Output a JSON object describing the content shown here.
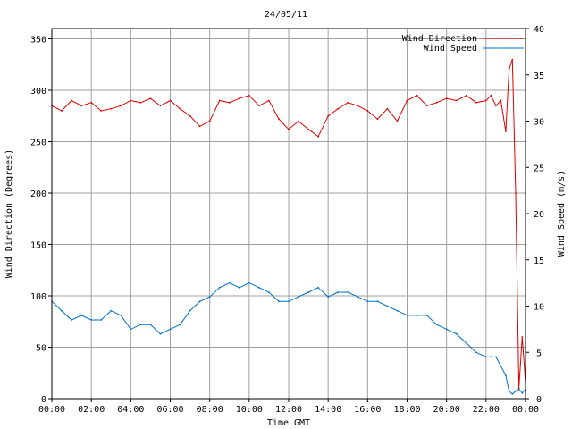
{
  "chart_data": {
    "type": "line",
    "title": "24/05/11",
    "xlabel": "Time GMT",
    "ylabel_left": "Wind Direction (Degrees)",
    "ylabel_right": "Wind Speed (m/s)",
    "x_ticks": [
      "00:00",
      "02:00",
      "04:00",
      "06:00",
      "08:00",
      "10:00",
      "12:00",
      "14:00",
      "16:00",
      "18:00",
      "20:00",
      "22:00",
      "00:00"
    ],
    "y_left_ticks": [
      "0",
      "50",
      "100",
      "150",
      "200",
      "250",
      "300",
      "350"
    ],
    "y_right_ticks": [
      "0",
      "5",
      "10",
      "15",
      "20",
      "25",
      "30",
      "35",
      "40"
    ],
    "ylim_left": [
      0,
      360
    ],
    "ylim_right": [
      0,
      40
    ],
    "grid": true,
    "legend_position": "top-right",
    "series": [
      {
        "name": "Wind Direction",
        "axis": "left",
        "color": "#dd0000",
        "x": [
          "00:00",
          "00:30",
          "01:00",
          "01:30",
          "02:00",
          "02:30",
          "03:00",
          "03:30",
          "04:00",
          "04:30",
          "05:00",
          "05:30",
          "06:00",
          "06:30",
          "07:00",
          "07:30",
          "08:00",
          "08:30",
          "09:00",
          "09:30",
          "10:00",
          "10:30",
          "11:00",
          "11:30",
          "12:00",
          "12:30",
          "13:00",
          "13:30",
          "14:00",
          "14:30",
          "15:00",
          "15:30",
          "16:00",
          "16:30",
          "17:00",
          "17:30",
          "18:00",
          "18:30",
          "19:00",
          "19:30",
          "20:00",
          "20:30",
          "21:00",
          "21:30",
          "22:00",
          "22:15",
          "22:30",
          "22:45",
          "23:00",
          "23:10",
          "23:20",
          "23:30",
          "23:40",
          "23:50",
          "24:00"
        ],
        "values": [
          285,
          280,
          290,
          285,
          288,
          280,
          282,
          285,
          290,
          288,
          292,
          285,
          290,
          282,
          275,
          265,
          270,
          290,
          288,
          292,
          295,
          285,
          290,
          272,
          262,
          270,
          262,
          255,
          275,
          282,
          288,
          285,
          280,
          272,
          282,
          270,
          290,
          295,
          285,
          288,
          292,
          290,
          295,
          288,
          290,
          295,
          285,
          290,
          260,
          320,
          330,
          200,
          10,
          60,
          15
        ]
      },
      {
        "name": "Wind Speed",
        "axis": "right",
        "color": "#0070c8",
        "x": [
          "00:00",
          "00:30",
          "01:00",
          "01:30",
          "02:00",
          "02:30",
          "03:00",
          "03:30",
          "04:00",
          "04:30",
          "05:00",
          "05:30",
          "06:00",
          "06:30",
          "07:00",
          "07:30",
          "08:00",
          "08:30",
          "09:00",
          "09:30",
          "10:00",
          "10:30",
          "11:00",
          "11:30",
          "12:00",
          "12:30",
          "13:00",
          "13:30",
          "14:00",
          "14:30",
          "15:00",
          "15:30",
          "16:00",
          "16:30",
          "17:00",
          "17:30",
          "18:00",
          "18:30",
          "19:00",
          "19:30",
          "20:00",
          "20:30",
          "21:00",
          "21:30",
          "22:00",
          "22:15",
          "22:30",
          "22:45",
          "23:00",
          "23:10",
          "23:20",
          "23:30",
          "23:40",
          "23:50",
          "24:00"
        ],
        "values": [
          10.5,
          9.5,
          8.5,
          9,
          8.5,
          8.5,
          9.5,
          9,
          7.5,
          8,
          8,
          7,
          7.5,
          8,
          9.5,
          10.5,
          11,
          12,
          12.5,
          12,
          12.5,
          12,
          11.5,
          10.5,
          10.5,
          11,
          11.5,
          12,
          11,
          11.5,
          11.5,
          11,
          10.5,
          10.5,
          10,
          9.5,
          9,
          9,
          9,
          8,
          7.5,
          7,
          6,
          5,
          4.5,
          4.5,
          4.5,
          3.5,
          2.5,
          0.8,
          0.5,
          0.8,
          1.0,
          0.6,
          1.0
        ]
      }
    ]
  }
}
